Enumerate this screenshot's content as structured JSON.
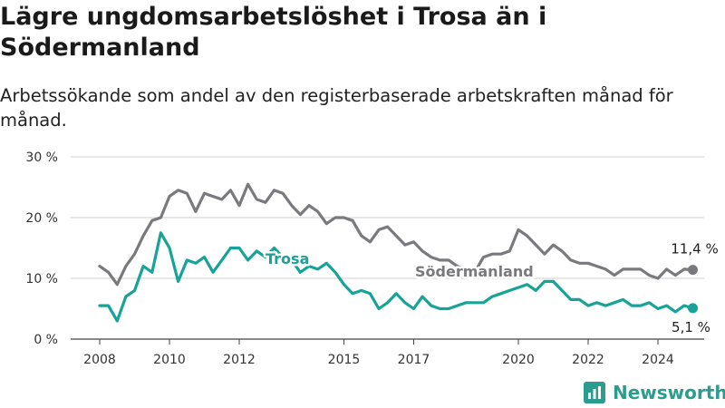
{
  "title": "Lägre ungdomsarbetslöshet i Trosa än i Södermanland",
  "subtitle": "Arbetssökande som andel av den registerbaserade arbetskraften månad för månad.",
  "brand": {
    "name": "Newsworthy",
    "icon": "bar-chart-icon",
    "color": "#2a9d8f"
  },
  "chart_data": {
    "type": "line",
    "y_ticks": [
      0,
      10,
      20,
      30
    ],
    "y_tick_labels": [
      "0 %",
      "10 %",
      "20 %",
      "30 %"
    ],
    "ylim": [
      0,
      30
    ],
    "x_ticks": [
      2008,
      2010,
      2012,
      2015,
      2017,
      2020,
      2022,
      2024
    ],
    "x_tick_labels": [
      "2008",
      "2010",
      "2012",
      "2015",
      "2017",
      "2020",
      "2022",
      "2024"
    ],
    "xlim": [
      2007.5,
      2025.5
    ],
    "grid": "horizontal",
    "series": [
      {
        "name": "Södermanland",
        "color": "#7a7a7e",
        "end_label": "11,4 %",
        "x": [
          2008.0,
          2008.25,
          2008.5,
          2008.75,
          2009.0,
          2009.25,
          2009.5,
          2009.75,
          2010.0,
          2010.25,
          2010.5,
          2010.75,
          2011.0,
          2011.25,
          2011.5,
          2011.75,
          2012.0,
          2012.25,
          2012.5,
          2012.75,
          2013.0,
          2013.25,
          2013.5,
          2013.75,
          2014.0,
          2014.25,
          2014.5,
          2014.75,
          2015.0,
          2015.25,
          2015.5,
          2015.75,
          2016.0,
          2016.25,
          2016.5,
          2016.75,
          2017.0,
          2017.25,
          2017.5,
          2017.75,
          2018.0,
          2018.25,
          2018.5,
          2018.75,
          2019.0,
          2019.25,
          2019.5,
          2019.75,
          2020.0,
          2020.25,
          2020.5,
          2020.75,
          2021.0,
          2021.25,
          2021.5,
          2021.75,
          2022.0,
          2022.25,
          2022.5,
          2022.75,
          2023.0,
          2023.25,
          2023.5,
          2023.75,
          2024.0,
          2024.25,
          2024.5,
          2024.75,
          2025.0
        ],
        "y": [
          12,
          11,
          9,
          12,
          14,
          17,
          19.5,
          20,
          23.5,
          24.5,
          24,
          21,
          24,
          23.5,
          23,
          24.5,
          22,
          25.5,
          23,
          22.5,
          24.5,
          24,
          22,
          20.5,
          22,
          21,
          19,
          20,
          20,
          19.5,
          17,
          16,
          18,
          18.5,
          17,
          15.5,
          16,
          14.5,
          13.5,
          13,
          13,
          12,
          11.5,
          11,
          13.5,
          14,
          14,
          14.5,
          18,
          17,
          15.5,
          14,
          15.5,
          14.5,
          13,
          12.5,
          12.5,
          12,
          11.5,
          10.5,
          11.5,
          11.5,
          11.5,
          10.5,
          10,
          11.5,
          10.5,
          11.5,
          11.4
        ]
      },
      {
        "name": "Trosa",
        "color": "#17a398",
        "end_label": "5,1 %",
        "x": [
          2008.0,
          2008.25,
          2008.5,
          2008.75,
          2009.0,
          2009.25,
          2009.5,
          2009.75,
          2010.0,
          2010.25,
          2010.5,
          2010.75,
          2011.0,
          2011.25,
          2011.5,
          2011.75,
          2012.0,
          2012.25,
          2012.5,
          2012.75,
          2013.0,
          2013.25,
          2013.5,
          2013.75,
          2014.0,
          2014.25,
          2014.5,
          2014.75,
          2015.0,
          2015.25,
          2015.5,
          2015.75,
          2016.0,
          2016.25,
          2016.5,
          2016.75,
          2017.0,
          2017.25,
          2017.5,
          2017.75,
          2018.0,
          2018.25,
          2018.5,
          2018.75,
          2019.0,
          2019.25,
          2019.5,
          2019.75,
          2020.0,
          2020.25,
          2020.5,
          2020.75,
          2021.0,
          2021.25,
          2021.5,
          2021.75,
          2022.0,
          2022.25,
          2022.5,
          2022.75,
          2023.0,
          2023.25,
          2023.5,
          2023.75,
          2024.0,
          2024.25,
          2024.5,
          2024.75,
          2025.0
        ],
        "y": [
          5.5,
          5.5,
          3,
          7,
          8,
          12,
          11,
          17.5,
          15,
          9.5,
          13,
          12.5,
          13.5,
          11,
          13,
          15,
          15,
          13,
          14.5,
          13.5,
          15,
          13.5,
          13,
          11,
          12,
          11.5,
          12.5,
          11,
          9,
          7.5,
          8,
          7.5,
          5,
          6,
          7.5,
          6,
          5,
          7,
          5.5,
          5,
          5,
          5.5,
          6,
          6,
          6,
          7,
          7.5,
          8,
          8.5,
          9,
          8,
          9.5,
          9.5,
          8,
          6.5,
          6.5,
          5.5,
          6,
          5.5,
          6,
          6.5,
          5.5,
          5.5,
          6,
          5,
          5.5,
          4.5,
          5.5,
          5.1
        ]
      }
    ]
  }
}
